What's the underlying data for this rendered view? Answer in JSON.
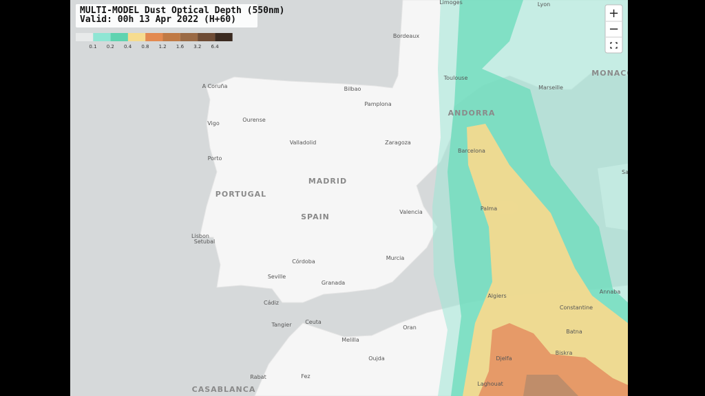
{
  "header": {
    "title": "MULTI-MODEL Dust Optical Depth (550nm)",
    "subtitle": "Valid: 00h 13 Apr 2022 (H+60)"
  },
  "legend": {
    "labels": [
      "0.1",
      "0.2",
      "0.4",
      "0.8",
      "1.2",
      "1.6",
      "3.2",
      "6.4"
    ]
  },
  "controls": {
    "zoom_in": "+",
    "zoom_out": "−"
  },
  "map": {
    "labels": [
      "Limoges",
      "Lyon",
      "Bordeaux",
      "Toulouse",
      "Marseille",
      "MONACO",
      "A Coruña",
      "Bilbao",
      "Pamplona",
      "ANDORRA",
      "Ourense",
      "Vigo",
      "Valladolid",
      "Zaragoza",
      "Barcelona",
      "Porto",
      "MADRID",
      "PORTUGAL",
      "Palma",
      "Valencia",
      "SPAIN",
      "Lisbon",
      "Setubal",
      "Murcia",
      "Córdoba",
      "Seville",
      "Granada",
      "Algiers",
      "Annaba",
      "Cádiz",
      "Constantine",
      "Tangier",
      "Ceuta",
      "Oran",
      "Batna",
      "Melilla",
      "Biskra",
      "Oujda",
      "Djelfa",
      "Rabat",
      "Fez",
      "Laghouat",
      "CASABLANCA",
      "Sa"
    ]
  }
}
